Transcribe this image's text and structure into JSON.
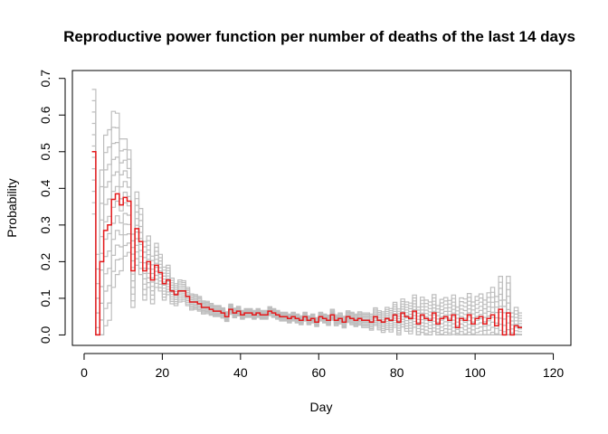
{
  "chart_data": {
    "type": "line",
    "title": "Reproductive power function per number of deaths of the last 14 days",
    "xlabel": "Day",
    "ylabel": "Probability",
    "xlim": [
      0,
      120
    ],
    "ylim": [
      0,
      0.72
    ],
    "xticks": [
      0,
      20,
      40,
      60,
      80,
      100,
      120
    ],
    "yticks": [
      0.0,
      0.1,
      0.2,
      0.3,
      0.4,
      0.5,
      0.6,
      0.7
    ],
    "xtick_labels": [
      "0",
      "20",
      "40",
      "60",
      "80",
      "100",
      "120"
    ],
    "ytick_labels": [
      "0.0",
      "0.1",
      "0.2",
      "0.3",
      "0.4",
      "0.5",
      "0.6",
      "0.7"
    ],
    "grid": false,
    "series": [
      {
        "color": "#e41a1c",
        "style": "step",
        "x": [
          2,
          3,
          4,
          5,
          6,
          7,
          8,
          9,
          10,
          11,
          12,
          13,
          14,
          15,
          16,
          17,
          18,
          19,
          20,
          21,
          22,
          23,
          24,
          25,
          26,
          27,
          28,
          29,
          30,
          31,
          32,
          33,
          34,
          35,
          36,
          37,
          38,
          39,
          40,
          41,
          42,
          43,
          44,
          45,
          46,
          47,
          48,
          49,
          50,
          51,
          52,
          53,
          54,
          55,
          56,
          57,
          58,
          59,
          60,
          61,
          62,
          63,
          64,
          65,
          66,
          67,
          68,
          69,
          70,
          71,
          72,
          73,
          74,
          75,
          76,
          77,
          78,
          79,
          80,
          81,
          82,
          83,
          84,
          85,
          86,
          87,
          88,
          89,
          90,
          91,
          92,
          93,
          94,
          95,
          96,
          97,
          98,
          99,
          100,
          101,
          102,
          103,
          104,
          105,
          106,
          107,
          108,
          109,
          110,
          111
        ],
        "y": [
          0.5,
          0.0,
          0.2,
          0.285,
          0.3,
          0.37,
          0.385,
          0.355,
          0.375,
          0.365,
          0.175,
          0.29,
          0.255,
          0.175,
          0.2,
          0.15,
          0.19,
          0.17,
          0.14,
          0.15,
          0.12,
          0.11,
          0.12,
          0.12,
          0.105,
          0.09,
          0.09,
          0.085,
          0.075,
          0.075,
          0.07,
          0.065,
          0.065,
          0.06,
          0.05,
          0.07,
          0.06,
          0.065,
          0.055,
          0.06,
          0.06,
          0.055,
          0.06,
          0.055,
          0.055,
          0.065,
          0.06,
          0.055,
          0.05,
          0.05,
          0.045,
          0.05,
          0.045,
          0.04,
          0.05,
          0.04,
          0.045,
          0.035,
          0.05,
          0.045,
          0.04,
          0.055,
          0.04,
          0.045,
          0.035,
          0.05,
          0.045,
          0.04,
          0.045,
          0.04,
          0.04,
          0.035,
          0.05,
          0.04,
          0.035,
          0.045,
          0.04,
          0.055,
          0.035,
          0.06,
          0.05,
          0.045,
          0.065,
          0.03,
          0.055,
          0.045,
          0.04,
          0.06,
          0.03,
          0.045,
          0.05,
          0.04,
          0.055,
          0.02,
          0.045,
          0.04,
          0.055,
          0.03,
          0.045,
          0.05,
          0.03,
          0.045,
          0.055,
          0.025,
          0.07,
          0.0,
          0.06,
          0.0,
          0.025,
          0.02
        ]
      }
    ],
    "band": {
      "color": "#bebebe",
      "description_count": 12,
      "x": [
        2,
        3,
        4,
        5,
        6,
        7,
        8,
        9,
        10,
        11,
        12,
        13,
        14,
        15,
        16,
        17,
        18,
        19,
        20,
        21,
        22,
        23,
        24,
        25,
        26,
        27,
        28,
        29,
        30,
        31,
        32,
        33,
        34,
        35,
        36,
        37,
        38,
        39,
        40,
        41,
        42,
        43,
        44,
        45,
        46,
        47,
        48,
        49,
        50,
        51,
        52,
        53,
        54,
        55,
        56,
        57,
        58,
        59,
        60,
        61,
        62,
        63,
        64,
        65,
        66,
        67,
        68,
        69,
        70,
        71,
        72,
        73,
        74,
        75,
        76,
        77,
        78,
        79,
        80,
        81,
        82,
        83,
        84,
        85,
        86,
        87,
        88,
        89,
        90,
        91,
        92,
        93,
        94,
        95,
        96,
        97,
        98,
        99,
        100,
        101,
        102,
        103,
        104,
        105,
        106,
        107,
        108,
        109,
        110,
        111
      ],
      "spread": [
        0.17,
        0.22,
        0.25,
        0.26,
        0.26,
        0.24,
        0.22,
        0.18,
        0.16,
        0.14,
        0.1,
        0.1,
        0.09,
        0.08,
        0.07,
        0.065,
        0.06,
        0.05,
        0.045,
        0.04,
        0.035,
        0.03,
        0.03,
        0.028,
        0.025,
        0.022,
        0.02,
        0.02,
        0.018,
        0.017,
        0.016,
        0.015,
        0.015,
        0.014,
        0.013,
        0.014,
        0.013,
        0.013,
        0.012,
        0.012,
        0.012,
        0.012,
        0.012,
        0.012,
        0.012,
        0.012,
        0.012,
        0.012,
        0.012,
        0.012,
        0.012,
        0.012,
        0.012,
        0.012,
        0.012,
        0.012,
        0.012,
        0.012,
        0.012,
        0.012,
        0.014,
        0.015,
        0.015,
        0.015,
        0.016,
        0.016,
        0.017,
        0.017,
        0.018,
        0.02,
        0.02,
        0.022,
        0.024,
        0.026,
        0.028,
        0.03,
        0.032,
        0.034,
        0.036,
        0.038,
        0.04,
        0.042,
        0.044,
        0.046,
        0.048,
        0.05,
        0.05,
        0.05,
        0.05,
        0.052,
        0.052,
        0.054,
        0.054,
        0.056,
        0.056,
        0.058,
        0.058,
        0.06,
        0.06,
        0.062,
        0.065,
        0.07,
        0.075,
        0.08,
        0.09,
        0.095,
        0.1,
        0.06,
        0.05,
        0.04
      ]
    }
  }
}
